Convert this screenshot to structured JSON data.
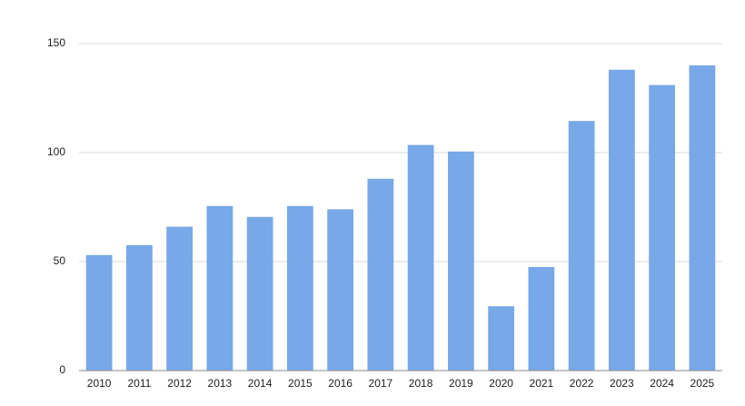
{
  "chart_data": {
    "type": "bar",
    "categories": [
      "2010",
      "2011",
      "2012",
      "2013",
      "2014",
      "2015",
      "2016",
      "2017",
      "2018",
      "2019",
      "2020",
      "2021",
      "2022",
      "2023",
      "2024",
      "2025"
    ],
    "values": [
      53,
      57.5,
      66,
      75.5,
      70.5,
      75.5,
      74,
      88,
      103.5,
      100.5,
      29.5,
      47.5,
      114.5,
      138,
      131,
      140
    ],
    "color": "#77a8e8",
    "ylim": [
      0,
      150
    ],
    "yticks": [
      0,
      50,
      100,
      150
    ],
    "grid": true
  }
}
